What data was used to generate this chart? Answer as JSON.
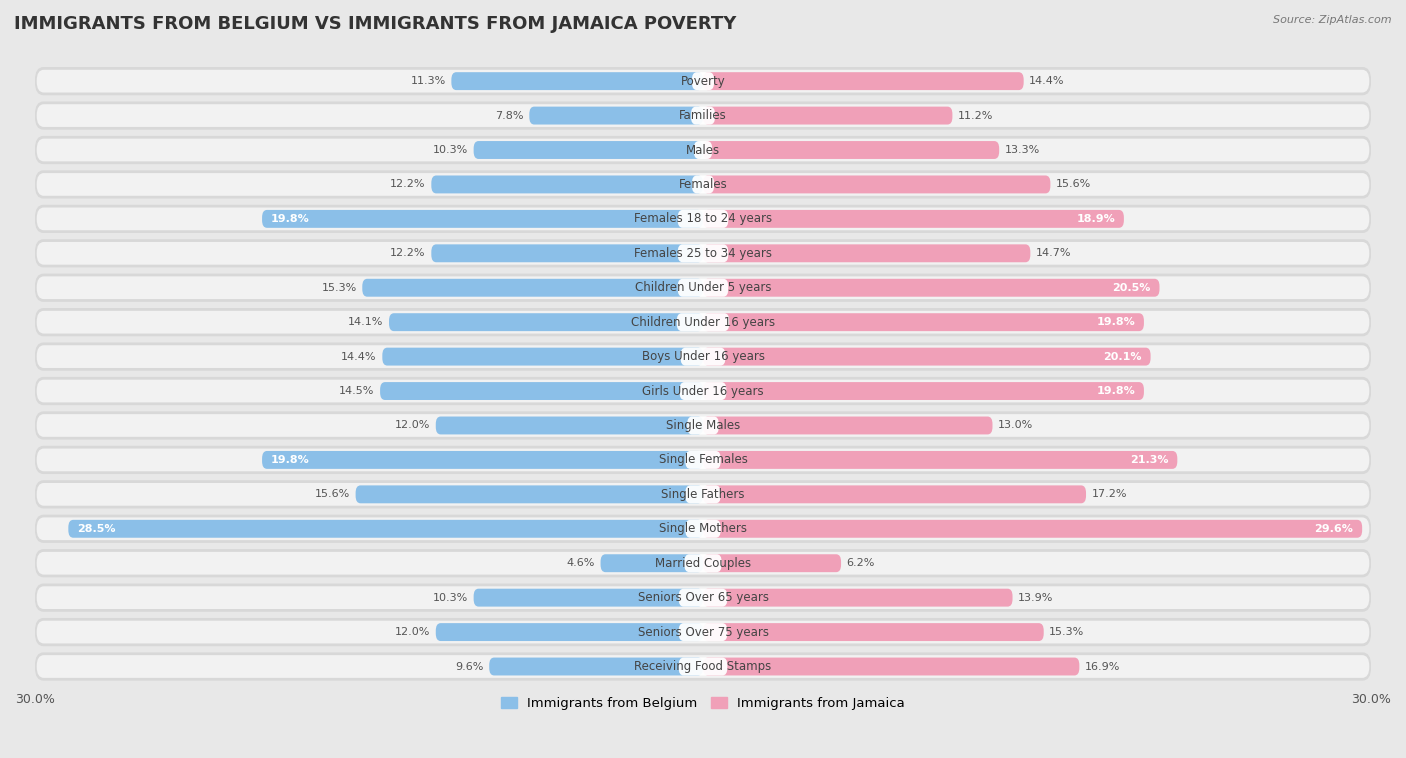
{
  "title": "IMMIGRANTS FROM BELGIUM VS IMMIGRANTS FROM JAMAICA POVERTY",
  "source": "Source: ZipAtlas.com",
  "categories": [
    "Poverty",
    "Families",
    "Males",
    "Females",
    "Females 18 to 24 years",
    "Females 25 to 34 years",
    "Children Under 5 years",
    "Children Under 16 years",
    "Boys Under 16 years",
    "Girls Under 16 years",
    "Single Males",
    "Single Females",
    "Single Fathers",
    "Single Mothers",
    "Married Couples",
    "Seniors Over 65 years",
    "Seniors Over 75 years",
    "Receiving Food Stamps"
  ],
  "belgium_values": [
    11.3,
    7.8,
    10.3,
    12.2,
    19.8,
    12.2,
    15.3,
    14.1,
    14.4,
    14.5,
    12.0,
    19.8,
    15.6,
    28.5,
    4.6,
    10.3,
    12.0,
    9.6
  ],
  "jamaica_values": [
    14.4,
    11.2,
    13.3,
    15.6,
    18.9,
    14.7,
    20.5,
    19.8,
    20.1,
    19.8,
    13.0,
    21.3,
    17.2,
    29.6,
    6.2,
    13.9,
    15.3,
    16.9
  ],
  "belgium_color": "#8bbfe8",
  "jamaica_color": "#f0a0b8",
  "belgium_label": "Immigrants from Belgium",
  "jamaica_label": "Immigrants from Jamaica",
  "xlim": 30.0,
  "background_color": "#e8e8e8",
  "row_bg_color": "#d8d8d8",
  "row_inner_color": "#f2f2f2",
  "title_fontsize": 13,
  "label_fontsize": 8.5,
  "value_fontsize": 8,
  "legend_fontsize": 9.5
}
